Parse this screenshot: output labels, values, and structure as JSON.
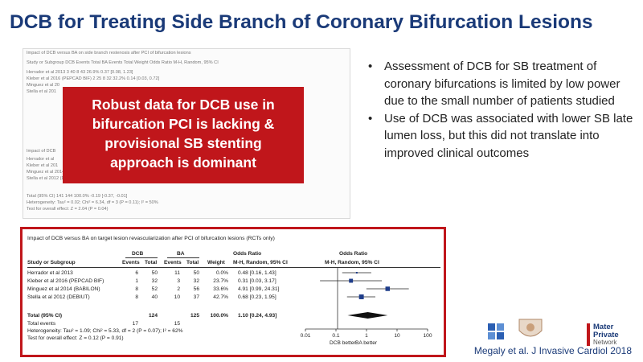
{
  "title": "DCB for Treating Side Branch of Coronary Bifurcation Lesions",
  "plot1": {
    "heading": "Impact of DCB versus BA on side branch restenosis after PCI of bifurcation lesions",
    "headers": "Study or Subgroup    DCB Events Total   BA Events Total   Weight   Odds Ratio M-H, Random, 95% CI",
    "rows": [
      "Herrador et al 2013          3    40     8    43    26.9%   0.37 [0.08, 1.23]",
      "Kleber et al 2016 (PEPCAD BIF)   2    25     8    32    32.2%   0.14 [0.03, 0.72]",
      "Minguez et al 20",
      "Stella et al 201"
    ],
    "second_heading": "Impact of DCB",
    "rows2": [
      "Herrador et al",
      "Kleber et al 201",
      "Minguez et al 2014 (BABILON)   -0.04  3.76   43   -0.03  0.51   43   23.9%   -0.01 [-0.28, 0.26]",
      "Stella et al 2012 (DEBIUT)   0.19  0.68   33   0.21  0.57   35   22.0%   -0.02 [-0.31, 0.27]"
    ],
    "totals": [
      "Total (95% CI)                 141                  144   100.0%   -0.19 [-0.37, -0.01]",
      "Heterogeneity: Tau² = 0.02; Chi² = 6.34, df = 3 (P = 0.11); I² = 50%",
      "Test for overall effect: Z = 2.04 (P = 0.04)"
    ]
  },
  "red_box": {
    "lines": [
      "Robust data for DCB use in",
      "bifurcation PCI is lacking &",
      "provisional SB stenting",
      "approach is dominant"
    ]
  },
  "bullets": [
    "Assessment of DCB for SB treatment of coronary bifurcations is limited by low power due to the small number of patients studied",
    "Use of DCB was associated with lower SB late lumen loss, but this did not translate into improved clinical outcomes"
  ],
  "plot2": {
    "title": "Impact of DCB versus BA on target lesion revascularization after PCI of bifurcation lesions (RCTs only)",
    "group_dcb": "DCB",
    "group_ba": "BA",
    "or_header": "Odds Ratio",
    "or_header2": "Odds Ratio",
    "col_headers": {
      "study": "Study or Subgroup",
      "events1": "Events",
      "total1": "Total",
      "events2": "Events",
      "total2": "Total",
      "weight": "Weight",
      "or": "M-H, Random, 95% CI",
      "or2": "M-H, Random, 95% CI"
    },
    "studies": [
      {
        "name": "Herrador et al 2013",
        "e1": "6",
        "t1": "50",
        "e2": "11",
        "t2": "50",
        "weight": "0.0%",
        "or_text": "0.48 [0.16, 1.43]"
      },
      {
        "name": "Kleber et al 2016 (PEPCAD BIF)",
        "e1": "1",
        "t1": "32",
        "e2": "3",
        "t2": "32",
        "weight": "23.7%",
        "or_text": "0.31 [0.03, 3.17]"
      },
      {
        "name": "Minguez et al 2014 (BABILON)",
        "e1": "8",
        "t1": "52",
        "e2": "2",
        "t2": "56",
        "weight": "33.6%",
        "or_text": "4.91 [0.99, 24.31]"
      },
      {
        "name": "Stella et al 2012 (DEBIUT)",
        "e1": "8",
        "t1": "40",
        "e2": "10",
        "t2": "37",
        "weight": "42.7%",
        "or_text": "0.68 [0.23, 1.95]"
      }
    ],
    "total_label": "Total (95% CI)",
    "total_t1": "124",
    "total_t2": "125",
    "total_weight": "100.0%",
    "total_or": "1.10 [0.24, 4.93]",
    "total_events_label": "Total events",
    "total_e1": "17",
    "total_e2": "15",
    "heterogeneity": "Heterogeneity: Tau² = 1.09; Chi² = 5.33, df = 2 (P = 0.07); I² = 62%",
    "overall_effect": "Test for overall effect: Z = 0.12 (P = 0.91)",
    "axis_ticks": [
      "0.01",
      "0.1",
      "1",
      "10",
      "100"
    ],
    "favours_left": "DCB better",
    "favours_right": "BA better"
  },
  "chart_data": {
    "type": "scatter",
    "title": "Impact of DCB versus BA on target lesion revascularization after PCI of bifurcation lesions (RCTs only)",
    "xlabel": "",
    "ylabel": "",
    "x_scale": "log",
    "xlim": [
      0.01,
      100
    ],
    "studies": [
      {
        "name": "Herrador et al 2013",
        "or": 0.48,
        "ci": [
          0.16,
          1.43
        ],
        "weight": 0.0
      },
      {
        "name": "Kleber et al 2016 (PEPCAD BIF)",
        "or": 0.31,
        "ci": [
          0.03,
          3.17
        ],
        "weight": 23.7
      },
      {
        "name": "Minguez et al 2014 (BABILON)",
        "or": 4.91,
        "ci": [
          0.99,
          24.31
        ],
        "weight": 33.6
      },
      {
        "name": "Stella et al 2012 (DEBIUT)",
        "or": 0.68,
        "ci": [
          0.23,
          1.95
        ],
        "weight": 42.7
      }
    ],
    "pooled": {
      "or": 1.1,
      "ci": [
        0.24,
        4.93
      ]
    }
  },
  "logos": {
    "mater_line1": "Mater",
    "mater_line2": "Private",
    "mater_line3": "Network"
  },
  "citation": "Megaly et al. J Invasive Cardiol 2018",
  "colors": {
    "title": "#1a3a78",
    "accent": "#c0161b",
    "marker": "#1f3d8a"
  }
}
